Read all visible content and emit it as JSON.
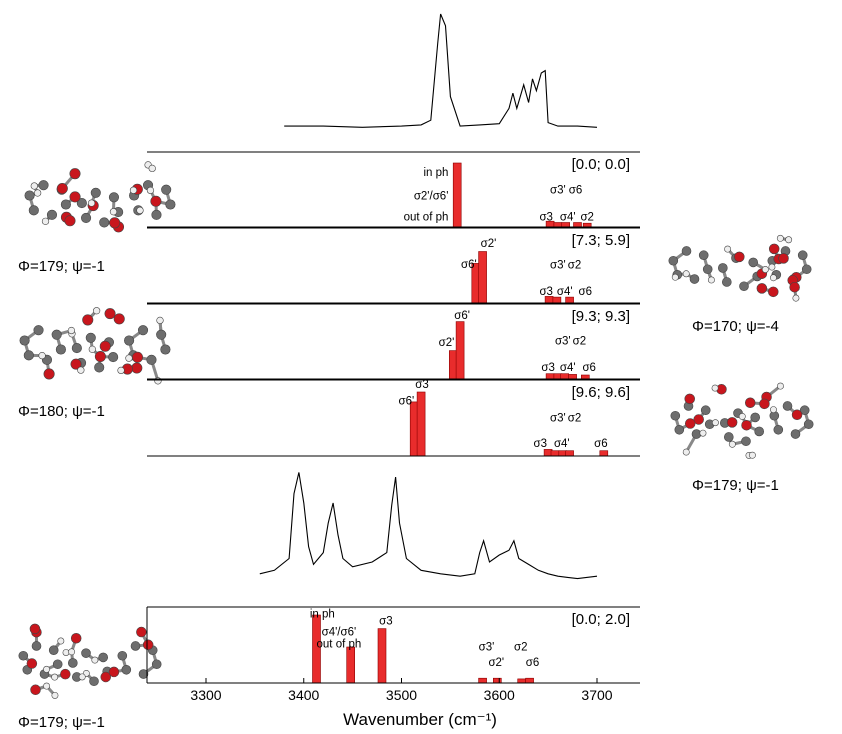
{
  "figure": {
    "xlabel": "Wavenumber (cm⁻¹)",
    "xticks": [
      3300,
      3400,
      3500,
      3600,
      3700
    ],
    "xlim": [
      3260,
      3750
    ]
  },
  "molecules": [
    {
      "label": "Φ=179; ψ=-1"
    },
    {
      "label": "Φ=180; ψ=-1"
    },
    {
      "label": "Φ=170; ψ=-4"
    },
    {
      "label": "Φ=179; ψ=-1"
    },
    {
      "label": "Φ=179; ψ=-1"
    }
  ],
  "chart_data": [
    {
      "type": "line",
      "note_shown": "experimental spectrum (upper)",
      "x": [
        3380,
        3420,
        3460,
        3500,
        3520,
        3530,
        3537,
        3540,
        3545,
        3550,
        3560,
        3580,
        3600,
        3610,
        3614,
        3618,
        3625,
        3630,
        3634,
        3638,
        3643,
        3647,
        3650,
        3660,
        3680,
        3700
      ],
      "y": [
        0.05,
        0.05,
        0.04,
        0.05,
        0.06,
        0.1,
        0.75,
        1.0,
        0.9,
        0.3,
        0.05,
        0.06,
        0.07,
        0.2,
        0.33,
        0.2,
        0.4,
        0.25,
        0.45,
        0.35,
        0.5,
        0.52,
        0.08,
        0.05,
        0.05,
        0.04
      ]
    },
    {
      "type": "bar",
      "annotation": "[0.0; 0.0]",
      "bars": [
        {
          "x": 3557,
          "value": 1.0
        },
        {
          "x": 3652,
          "value": 0.09
        },
        {
          "x": 3660,
          "value": 0.07
        },
        {
          "x": 3668,
          "value": 0.07
        },
        {
          "x": 3680,
          "value": 0.07
        },
        {
          "x": 3690,
          "value": 0.06
        }
      ],
      "labels": [
        {
          "text": "in ph",
          "x": 3548,
          "y": 0.8,
          "anchor": "end"
        },
        {
          "text": "σ2'/σ6'",
          "x": 3548,
          "y": 0.43,
          "anchor": "end"
        },
        {
          "text": "out of ph",
          "x": 3548,
          "y": 0.1,
          "anchor": "end"
        },
        {
          "text": "σ3'",
          "x": 3660,
          "y": 0.52,
          "anchor": "middle"
        },
        {
          "text": "σ6",
          "x": 3678,
          "y": 0.52,
          "anchor": "middle"
        },
        {
          "text": "σ3",
          "x": 3648,
          "y": 0.1,
          "anchor": "middle"
        },
        {
          "text": "σ4'",
          "x": 3670,
          "y": 0.1,
          "anchor": "middle"
        },
        {
          "text": "σ2",
          "x": 3690,
          "y": 0.1,
          "anchor": "middle"
        }
      ]
    },
    {
      "type": "bar",
      "annotation": "[7.3; 5.9]",
      "bars": [
        {
          "x": 3576,
          "value": 0.6
        },
        {
          "x": 3583,
          "value": 0.78
        },
        {
          "x": 3651,
          "value": 0.1
        },
        {
          "x": 3659,
          "value": 0.09
        },
        {
          "x": 3672,
          "value": 0.09
        }
      ],
      "labels": [
        {
          "text": "σ6'",
          "x": 3569,
          "y": 0.53,
          "anchor": "middle"
        },
        {
          "text": "σ2'",
          "x": 3589,
          "y": 0.85,
          "anchor": "middle"
        },
        {
          "text": "σ3'",
          "x": 3660,
          "y": 0.52,
          "anchor": "middle"
        },
        {
          "text": "σ2",
          "x": 3677,
          "y": 0.52,
          "anchor": "middle"
        },
        {
          "text": "σ3",
          "x": 3648,
          "y": 0.12,
          "anchor": "middle"
        },
        {
          "text": "σ4'",
          "x": 3667,
          "y": 0.12,
          "anchor": "middle"
        },
        {
          "text": "σ6",
          "x": 3688,
          "y": 0.12,
          "anchor": "middle"
        }
      ]
    },
    {
      "type": "bar",
      "annotation": "[9.3; 9.3]",
      "bars": [
        {
          "x": 3553,
          "value": 0.43
        },
        {
          "x": 3560,
          "value": 0.87
        },
        {
          "x": 3652,
          "value": 0.08
        },
        {
          "x": 3660,
          "value": 0.08
        },
        {
          "x": 3667,
          "value": 0.08
        },
        {
          "x": 3675,
          "value": 0.07
        },
        {
          "x": 3688,
          "value": 0.06
        }
      ],
      "labels": [
        {
          "text": "σ6'",
          "x": 3562,
          "y": 0.91,
          "anchor": "middle"
        },
        {
          "text": "σ2'",
          "x": 3546,
          "y": 0.5,
          "anchor": "middle"
        },
        {
          "text": "σ3'",
          "x": 3665,
          "y": 0.52,
          "anchor": "middle"
        },
        {
          "text": "σ2",
          "x": 3682,
          "y": 0.52,
          "anchor": "middle"
        },
        {
          "text": "σ3",
          "x": 3650,
          "y": 0.12,
          "anchor": "middle"
        },
        {
          "text": "σ4'",
          "x": 3670,
          "y": 0.12,
          "anchor": "middle"
        },
        {
          "text": "σ6",
          "x": 3692,
          "y": 0.12,
          "anchor": "middle"
        }
      ]
    },
    {
      "type": "bar",
      "annotation": "[9.6; 9.6]",
      "bars": [
        {
          "x": 3513,
          "value": 0.82
        },
        {
          "x": 3520,
          "value": 0.97
        },
        {
          "x": 3650,
          "value": 0.1
        },
        {
          "x": 3657,
          "value": 0.08
        },
        {
          "x": 3665,
          "value": 0.08
        },
        {
          "x": 3672,
          "value": 0.08
        },
        {
          "x": 3707,
          "value": 0.08
        }
      ],
      "labels": [
        {
          "text": "σ6'",
          "x": 3505,
          "y": 0.78,
          "anchor": "middle"
        },
        {
          "text": "σ3",
          "x": 3521,
          "y": 1.03,
          "anchor": "middle"
        },
        {
          "text": "σ3'",
          "x": 3660,
          "y": 0.52,
          "anchor": "middle"
        },
        {
          "text": "σ2",
          "x": 3677,
          "y": 0.52,
          "anchor": "middle"
        },
        {
          "text": "σ3",
          "x": 3642,
          "y": 0.14,
          "anchor": "middle"
        },
        {
          "text": "σ4'",
          "x": 3664,
          "y": 0.14,
          "anchor": "middle"
        },
        {
          "text": "σ6",
          "x": 3704,
          "y": 0.14,
          "anchor": "middle"
        }
      ]
    },
    {
      "type": "line",
      "note_shown": "experimental spectrum (lower)",
      "x": [
        3355,
        3370,
        3385,
        3390,
        3395,
        3400,
        3405,
        3410,
        3420,
        3425,
        3430,
        3435,
        3440,
        3450,
        3470,
        3485,
        3490,
        3494,
        3498,
        3505,
        3520,
        3540,
        3560,
        3575,
        3580,
        3584,
        3590,
        3600,
        3610,
        3615,
        3620,
        3630,
        3640,
        3650,
        3660,
        3670,
        3680,
        3700
      ],
      "y": [
        0.12,
        0.15,
        0.25,
        0.8,
        0.98,
        0.72,
        0.35,
        0.2,
        0.3,
        0.55,
        0.72,
        0.45,
        0.25,
        0.18,
        0.22,
        0.3,
        0.7,
        0.94,
        0.55,
        0.25,
        0.15,
        0.12,
        0.1,
        0.12,
        0.3,
        0.4,
        0.22,
        0.28,
        0.32,
        0.4,
        0.25,
        0.2,
        0.15,
        0.12,
        0.1,
        0.09,
        0.08,
        0.1
      ]
    },
    {
      "type": "bar",
      "annotation": "[0.0; 2.0]",
      "bars": [
        {
          "x": 3413,
          "value": 1.0
        },
        {
          "x": 3448,
          "value": 0.53
        },
        {
          "x": 3480,
          "value": 0.8
        },
        {
          "x": 3583,
          "value": 0.07
        },
        {
          "x": 3598,
          "value": 0.07
        },
        {
          "x": 3623,
          "value": 0.06
        },
        {
          "x": 3631,
          "value": 0.07
        }
      ],
      "labels": [
        {
          "text": "in ph",
          "x": 3419,
          "y": 0.96,
          "anchor": "middle"
        },
        {
          "text": "σ4'/σ6'",
          "x": 3436,
          "y": 0.7,
          "anchor": "middle"
        },
        {
          "text": "out of ph",
          "x": 3436,
          "y": 0.52,
          "anchor": "middle"
        },
        {
          "text": "σ3",
          "x": 3484,
          "y": 0.86,
          "anchor": "middle"
        },
        {
          "text": "σ3'",
          "x": 3587,
          "y": 0.48,
          "anchor": "middle"
        },
        {
          "text": "σ2'",
          "x": 3597,
          "y": 0.25,
          "anchor": "middle"
        },
        {
          "text": "σ2",
          "x": 3622,
          "y": 0.48,
          "anchor": "middle"
        },
        {
          "text": "σ6",
          "x": 3634,
          "y": 0.25,
          "anchor": "middle"
        }
      ]
    }
  ]
}
